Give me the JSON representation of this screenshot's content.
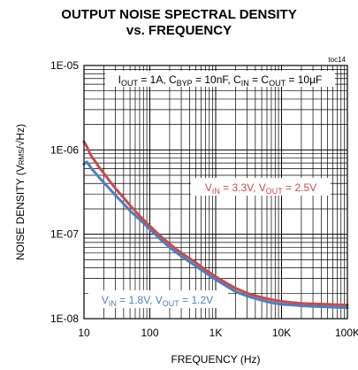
{
  "chart_data": {
    "type": "line",
    "title": "OUTPUT NOISE SPECTRAL  DENSITY",
    "subtitle": "vs. FREQUENCY",
    "tag": "toc14",
    "xlabel": "FREQUENCY (Hz)",
    "ylabel": {
      "prefix": "NOISE DENSITY (V",
      "sub": "RMS",
      "suffix": "/√Hz)"
    },
    "x_scale": "log",
    "y_scale": "log",
    "xlim": [
      10,
      100000
    ],
    "ylim": [
      1e-08,
      1e-05
    ],
    "grid": true,
    "x_ticks": [
      {
        "value": 10,
        "label": "10"
      },
      {
        "value": 100,
        "label": "100"
      },
      {
        "value": 1000,
        "label": "1K"
      },
      {
        "value": 10000,
        "label": "10K"
      },
      {
        "value": 100000,
        "label": "100K"
      }
    ],
    "y_ticks": [
      {
        "value": 1e-05,
        "label": "1E-05"
      },
      {
        "value": 1e-06,
        "label": "1E-06"
      },
      {
        "value": 1e-07,
        "label": "1E-07"
      },
      {
        "value": 1e-08,
        "label": "1E-08"
      }
    ],
    "conditions": {
      "parts": [
        {
          "t": "I"
        },
        {
          "t": "OUT",
          "sub": true
        },
        {
          "t": " = 1A, C"
        },
        {
          "t": "BYP",
          "sub": true
        },
        {
          "t": " = 10nF, C"
        },
        {
          "t": "IN",
          "sub": true
        },
        {
          "t": " = C"
        },
        {
          "t": "OUT",
          "sub": true
        },
        {
          "t": " = 10µF"
        }
      ]
    },
    "series": [
      {
        "color": "#4a7fc4",
        "label_parts": [
          {
            "t": "V"
          },
          {
            "t": "IN",
            "sub": true
          },
          {
            "t": " = 1.8V, V"
          },
          {
            "t": "OUT",
            "sub": true
          },
          {
            "t": " = 1.2V"
          }
        ],
        "x": [
          10,
          11,
          12,
          13,
          15,
          17,
          20,
          25,
          30,
          40,
          50,
          70,
          100,
          150,
          200,
          300,
          500,
          700,
          1000,
          1500,
          2000,
          3000,
          5000,
          7000,
          10000,
          15000,
          20000,
          30000,
          50000,
          70000,
          100000
        ],
        "y": [
          6.8e-07,
          7.2e-07,
          6.6e-07,
          6e-07,
          5.3e-07,
          4.7e-07,
          4.1e-07,
          3.4e-07,
          2.9e-07,
          2.3e-07,
          1.9e-07,
          1.5e-07,
          1.15e-07,
          8.5e-08,
          7e-08,
          5.5e-08,
          4.2e-08,
          3.5e-08,
          2.9e-08,
          2.4e-08,
          2.1e-08,
          1.85e-08,
          1.65e-08,
          1.55e-08,
          1.48e-08,
          1.45e-08,
          1.42e-08,
          1.4e-08,
          1.38e-08,
          1.36e-08,
          1.35e-08
        ]
      },
      {
        "color": "#c84b4b",
        "label_parts": [
          {
            "t": "V"
          },
          {
            "t": "IN",
            "sub": true
          },
          {
            "t": " = 3.3V, V"
          },
          {
            "t": "OUT",
            "sub": true
          },
          {
            "t": " = 2.5V"
          }
        ],
        "x": [
          10,
          11,
          12,
          13,
          15,
          17,
          20,
          25,
          30,
          40,
          50,
          70,
          100,
          150,
          200,
          300,
          500,
          700,
          1000,
          1500,
          2000,
          3000,
          5000,
          7000,
          10000,
          15000,
          20000,
          30000,
          50000,
          70000,
          100000
        ],
        "y": [
          1.25e-06,
          1.1e-06,
          9.5e-07,
          8.4e-07,
          7.2e-07,
          6.2e-07,
          5.3e-07,
          4.2e-07,
          3.5e-07,
          2.7e-07,
          2.2e-07,
          1.65e-07,
          1.25e-07,
          9.3e-08,
          7.7e-08,
          6e-08,
          4.6e-08,
          3.8e-08,
          3.15e-08,
          2.6e-08,
          2.3e-08,
          2e-08,
          1.78e-08,
          1.68e-08,
          1.6e-08,
          1.55e-08,
          1.52e-08,
          1.5e-08,
          1.48e-08,
          1.46e-08,
          1.45e-08
        ]
      }
    ]
  }
}
